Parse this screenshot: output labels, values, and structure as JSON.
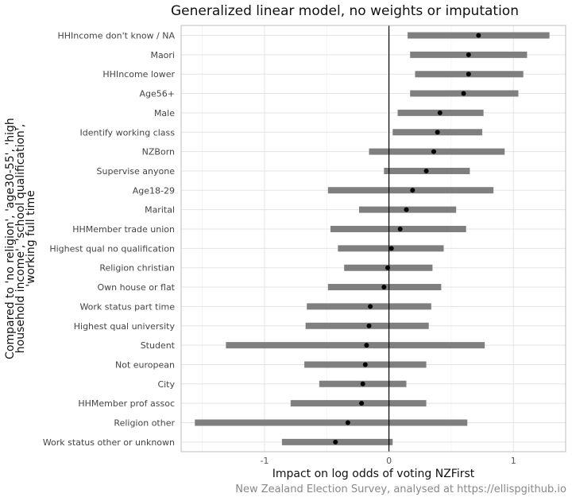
{
  "chart_data": {
    "type": "forest",
    "title": "Generalized linear model, no weights or imputation",
    "xlabel": "Impact on log odds of voting NZFirst",
    "ylabel_lines": [
      "Compared to 'no religion', 'age30-55', 'high",
      "household income', 'school qualification',",
      "'working full time"
    ],
    "caption": "New Zealand Election Survey, analysed at https://ellispgithub.io",
    "xlim": [
      -1.67,
      1.42
    ],
    "xticks": [
      -1,
      0,
      1
    ],
    "xtick_labels": [
      "-1",
      "0",
      "1"
    ],
    "reference_line": 0,
    "grid": true,
    "categories": [
      {
        "label": "HHIncome don't know / NA",
        "estimate": 0.72,
        "lower": 0.15,
        "upper": 1.29
      },
      {
        "label": "Maori",
        "estimate": 0.64,
        "lower": 0.17,
        "upper": 1.11
      },
      {
        "label": "HHIncome lower",
        "estimate": 0.64,
        "lower": 0.21,
        "upper": 1.08
      },
      {
        "label": "Age56+",
        "estimate": 0.6,
        "lower": 0.17,
        "upper": 1.04
      },
      {
        "label": "Male",
        "estimate": 0.41,
        "lower": 0.07,
        "upper": 0.76
      },
      {
        "label": "Identify working class",
        "estimate": 0.39,
        "lower": 0.03,
        "upper": 0.75
      },
      {
        "label": "NZBorn",
        "estimate": 0.36,
        "lower": -0.16,
        "upper": 0.93
      },
      {
        "label": "Supervise anyone",
        "estimate": 0.3,
        "lower": -0.04,
        "upper": 0.65
      },
      {
        "label": "Age18-29",
        "estimate": 0.19,
        "lower": -0.49,
        "upper": 0.84
      },
      {
        "label": "Marital",
        "estimate": 0.14,
        "lower": -0.24,
        "upper": 0.54
      },
      {
        "label": "HHMember trade union",
        "estimate": 0.09,
        "lower": -0.47,
        "upper": 0.62
      },
      {
        "label": "Highest qual no qualification",
        "estimate": 0.02,
        "lower": -0.41,
        "upper": 0.44
      },
      {
        "label": "Religion christian",
        "estimate": -0.01,
        "lower": -0.36,
        "upper": 0.35
      },
      {
        "label": "Own house or flat",
        "estimate": -0.04,
        "lower": -0.49,
        "upper": 0.42
      },
      {
        "label": "Work status part time",
        "estimate": -0.15,
        "lower": -0.66,
        "upper": 0.34
      },
      {
        "label": "Highest qual university",
        "estimate": -0.16,
        "lower": -0.67,
        "upper": 0.32
      },
      {
        "label": "Student",
        "estimate": -0.18,
        "lower": -1.31,
        "upper": 0.77
      },
      {
        "label": "Not european",
        "estimate": -0.19,
        "lower": -0.68,
        "upper": 0.3
      },
      {
        "label": "City",
        "estimate": -0.21,
        "lower": -0.56,
        "upper": 0.14
      },
      {
        "label": "HHMember prof assoc",
        "estimate": -0.22,
        "lower": -0.79,
        "upper": 0.3
      },
      {
        "label": "Religion other",
        "estimate": -0.33,
        "lower": -1.56,
        "upper": 0.63
      },
      {
        "label": "Work status other or unknown",
        "estimate": -0.43,
        "lower": -0.86,
        "upper": 0.03
      }
    ],
    "colors": {
      "interval": "#7f7f7f",
      "point": "#000000",
      "reference": "#000000"
    }
  }
}
